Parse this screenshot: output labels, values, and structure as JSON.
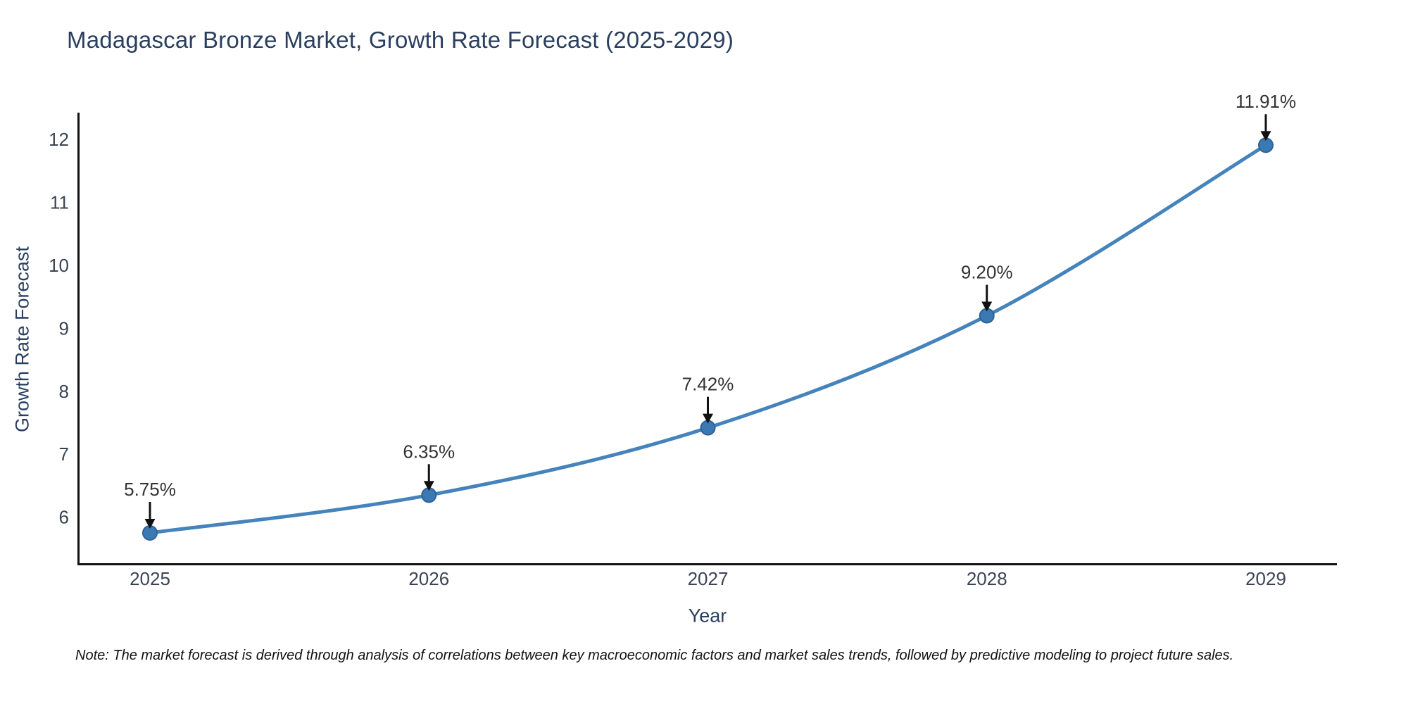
{
  "chart_data": {
    "type": "line",
    "title": "Madagascar Bronze Market, Growth Rate Forecast (2025-2029)",
    "xlabel": "Year",
    "ylabel": "Growth Rate Forecast",
    "categories": [
      "2025",
      "2026",
      "2027",
      "2028",
      "2029"
    ],
    "series": [
      {
        "name": "Growth Rate Forecast",
        "values": [
          5.75,
          6.35,
          7.42,
          9.2,
          11.91
        ]
      }
    ],
    "point_labels": [
      "5.75%",
      "6.35%",
      "7.42%",
      "9.20%",
      "11.91%"
    ],
    "yticks": [
      6,
      7,
      8,
      9,
      10,
      11,
      12
    ],
    "ylim": [
      5.28,
      12.43
    ],
    "grid": false,
    "legend_position": "none",
    "line_shape": "spline",
    "colors": {
      "line": "#4483bb",
      "marker_fill": "#3b79b5",
      "marker_edge": "#2e6294",
      "axis": "#111111",
      "title_text": "#2a3f5f",
      "tick_text": "#3c4454",
      "annotation_text": "#333333",
      "arrow": "#111111",
      "background": "#ffffff"
    }
  },
  "note": "Note: The market forecast is derived through analysis of correlations between key macroeconomic factors and market sales trends, followed by predictive modeling to project future sales."
}
